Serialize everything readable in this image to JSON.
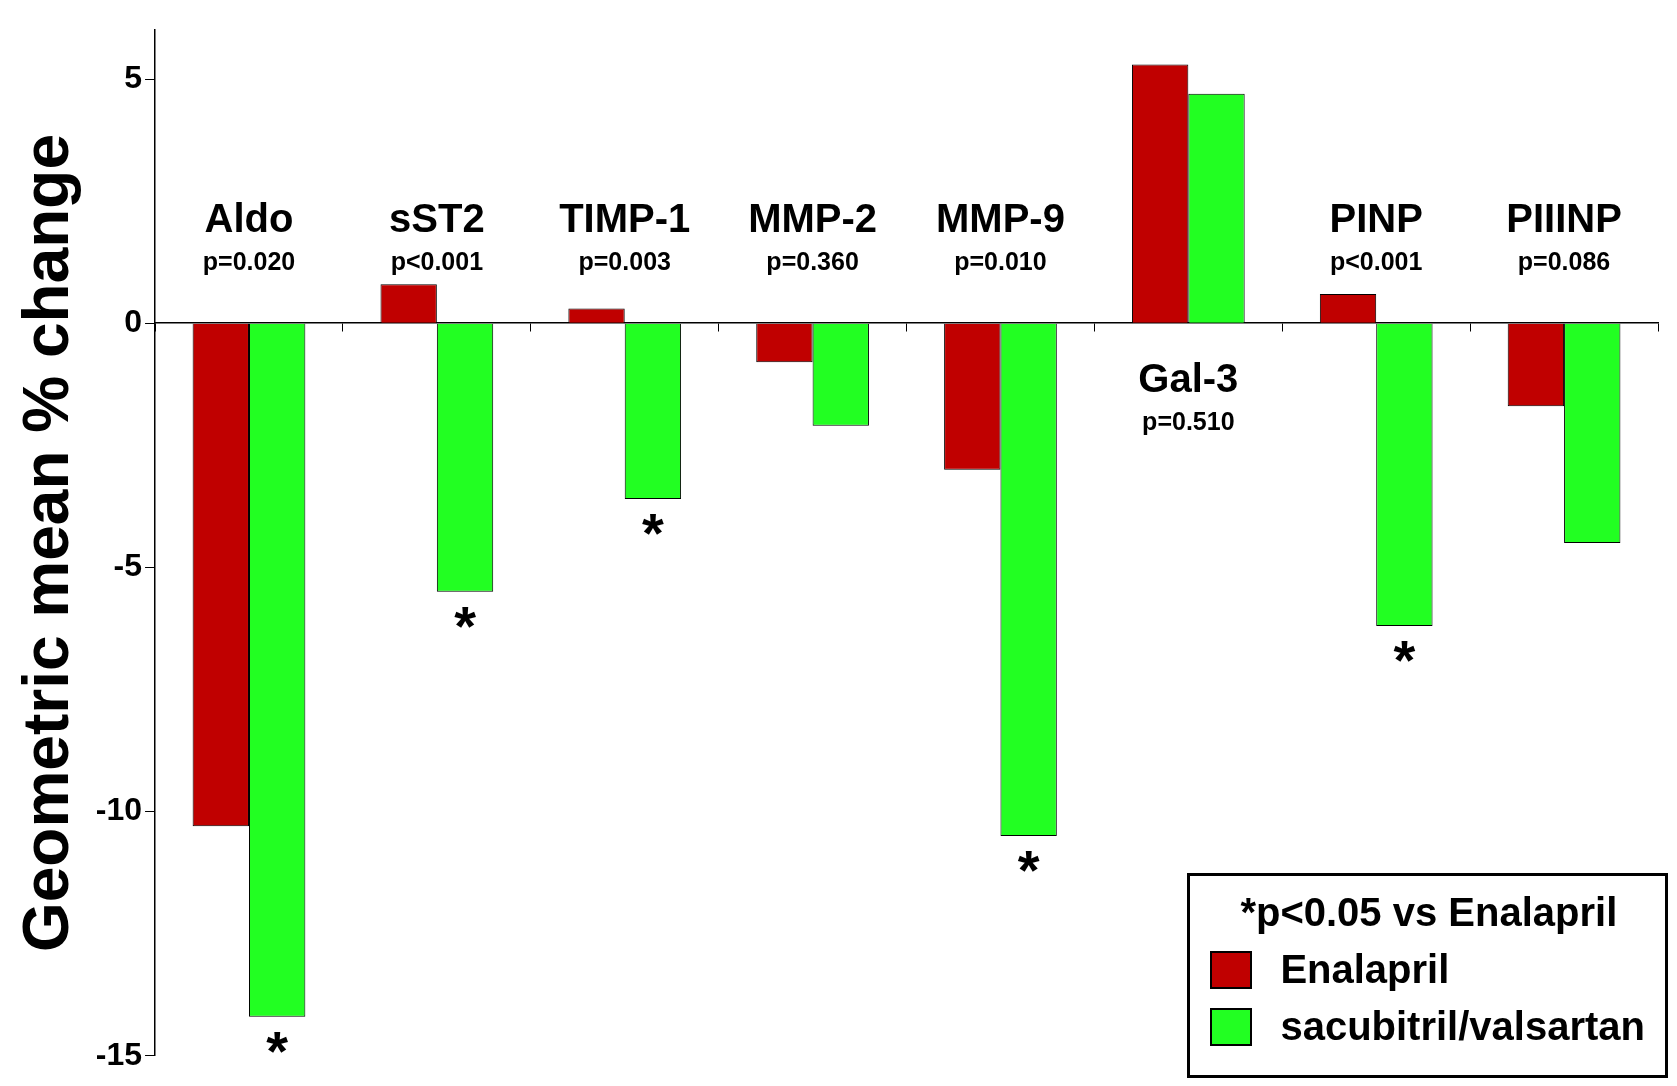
{
  "chart_data": {
    "type": "bar",
    "ylabel": "Geometric mean % change",
    "categories": [
      "Aldo",
      "sST2",
      "TIMP-1",
      "MMP-2",
      "MMP-9",
      "Gal-3",
      "PINP",
      "PIIINP"
    ],
    "series": [
      {
        "name": "Enalapril",
        "color": "#c00000",
        "values": [
          -10.3,
          0.8,
          0.3,
          -0.8,
          -3.0,
          5.3,
          0.6,
          -1.7
        ]
      },
      {
        "name": "sacubitril/valsartan",
        "color": "#22ff22",
        "values": [
          -14.2,
          -5.5,
          -3.6,
          -2.1,
          -10.5,
          4.7,
          -6.2,
          -4.5
        ]
      }
    ],
    "ylim": [
      -15,
      6
    ],
    "yticks": [
      -15,
      -10,
      -5,
      0,
      5
    ],
    "grid": false,
    "legend": "bottom right",
    "annotations": [
      "p=0.020",
      "p<0.001",
      "p=0.003",
      "p=0.360",
      "p=0.010",
      "p=0.510",
      "p<0.001",
      "p=0.086",
      {
        "text": "*",
        "x": "Aldo",
        "y": -14.2
      },
      {
        "text": "*",
        "x": "sST2",
        "y": -5.5
      },
      {
        "text": "*",
        "x": "TIMP-1",
        "y": -3.6
      },
      {
        "text": "*",
        "x": "MMP-9",
        "y": -10.5
      },
      {
        "text": "*",
        "x": "PINP",
        "y": -6.2
      },
      "*p<0.05 vs Enalapril"
    ]
  }
}
